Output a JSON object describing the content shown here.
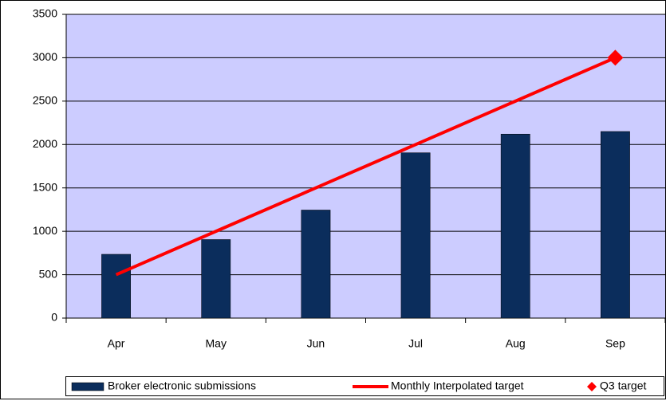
{
  "chart_data": {
    "type": "bar",
    "categories": [
      "Apr",
      "May",
      "Jun",
      "Jul",
      "Aug",
      "Sep"
    ],
    "series": [
      {
        "name": "Broker electronic submissions",
        "type": "bar",
        "color": "#0b2d5c",
        "values": [
          735,
          905,
          1245,
          1905,
          2120,
          2150
        ]
      },
      {
        "name": "Monthly Interpolated target",
        "type": "line",
        "color": "#ff0000",
        "values": [
          500,
          1000,
          1500,
          2000,
          2500,
          3000
        ]
      },
      {
        "name": "Q3 target",
        "type": "scatter",
        "color": "#ff0000",
        "values": [
          null,
          null,
          null,
          null,
          null,
          3000
        ]
      }
    ],
    "ylim": [
      0,
      3500
    ],
    "yticks": [
      0,
      500,
      1000,
      1500,
      2000,
      2500,
      3000,
      3500
    ],
    "grid": true,
    "plot_background": "#ccccff",
    "legend": "bottom"
  }
}
